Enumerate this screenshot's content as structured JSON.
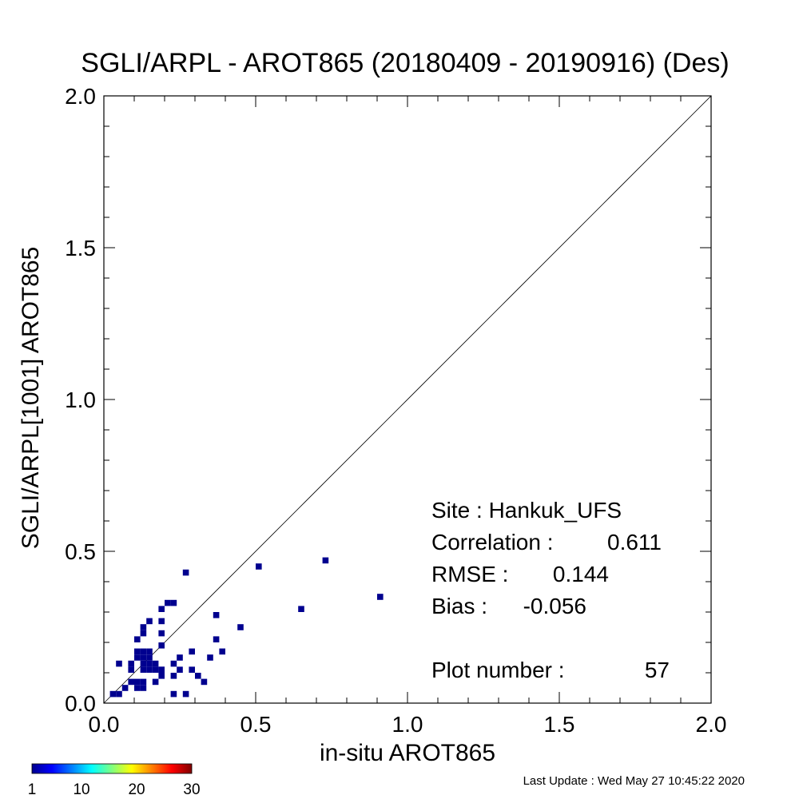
{
  "chart_data": {
    "type": "heatmap",
    "title": "SGLI/ARPL - AROT865 (20180409 - 20190916) (Des)",
    "xlabel": "in-situ AROT865",
    "ylabel": "SGLI/ARPL[1001]    AROT865",
    "xlim": [
      0.0,
      2.0
    ],
    "ylim": [
      0.0,
      2.0
    ],
    "x_ticks": [
      "0.0",
      "0.5",
      "1.0",
      "1.5",
      "2.0"
    ],
    "y_ticks": [
      "0.0",
      "0.5",
      "1.0",
      "1.5",
      "2.0"
    ],
    "x_tick_values": [
      0.0,
      0.5,
      1.0,
      1.5,
      2.0
    ],
    "y_tick_values": [
      0.0,
      0.5,
      1.0,
      1.5,
      2.0
    ],
    "reference_line": "1:1",
    "grid": false,
    "cell_size": 0.02,
    "color_scale": {
      "min": 1,
      "max": 30,
      "ticks": [
        "1",
        "10",
        "20",
        "30"
      ],
      "tick_values": [
        1,
        10,
        20,
        30
      ]
    },
    "points": [
      [
        0.03,
        0.03
      ],
      [
        0.05,
        0.03
      ],
      [
        0.05,
        0.13
      ],
      [
        0.07,
        0.05
      ],
      [
        0.09,
        0.07
      ],
      [
        0.09,
        0.11
      ],
      [
        0.11,
        0.05
      ],
      [
        0.11,
        0.07
      ],
      [
        0.11,
        0.15
      ],
      [
        0.11,
        0.21
      ],
      [
        0.13,
        0.05
      ],
      [
        0.13,
        0.07
      ],
      [
        0.13,
        0.11
      ],
      [
        0.13,
        0.13
      ],
      [
        0.13,
        0.15
      ],
      [
        0.13,
        0.17
      ],
      [
        0.13,
        0.23
      ],
      [
        0.13,
        0.25
      ],
      [
        0.15,
        0.11
      ],
      [
        0.15,
        0.13
      ],
      [
        0.15,
        0.15
      ],
      [
        0.15,
        0.17
      ],
      [
        0.15,
        0.27
      ],
      [
        0.17,
        0.07
      ],
      [
        0.17,
        0.11
      ],
      [
        0.17,
        0.13
      ],
      [
        0.19,
        0.09
      ],
      [
        0.19,
        0.11
      ],
      [
        0.19,
        0.19
      ],
      [
        0.19,
        0.23
      ],
      [
        0.19,
        0.27
      ],
      [
        0.19,
        0.31
      ],
      [
        0.21,
        0.33
      ],
      [
        0.23,
        0.03
      ],
      [
        0.23,
        0.09
      ],
      [
        0.23,
        0.13
      ],
      [
        0.23,
        0.33
      ],
      [
        0.25,
        0.11
      ],
      [
        0.25,
        0.15
      ],
      [
        0.27,
        0.03
      ],
      [
        0.27,
        0.43
      ],
      [
        0.29,
        0.11
      ],
      [
        0.29,
        0.17
      ],
      [
        0.31,
        0.09
      ],
      [
        0.33,
        0.07
      ],
      [
        0.35,
        0.15
      ],
      [
        0.37,
        0.21
      ],
      [
        0.37,
        0.29
      ],
      [
        0.39,
        0.17
      ],
      [
        0.45,
        0.25
      ],
      [
        0.51,
        0.45
      ],
      [
        0.65,
        0.31
      ],
      [
        0.73,
        0.47
      ],
      [
        0.91,
        0.35
      ],
      [
        0.09,
        0.13
      ],
      [
        0.11,
        0.17
      ],
      [
        0.19,
        0.11
      ]
    ],
    "point_color": "#00008f",
    "annotations": {
      "site": "Site : Hankuk_UFS",
      "correlation_label": "Correlation :",
      "correlation_value": "0.611",
      "rmse_label": "RMSE :",
      "rmse_value": "0.144",
      "bias_label": "Bias :",
      "bias_value": "-0.056",
      "plot_number_label": "Plot number :",
      "plot_number_value": "57"
    }
  },
  "footer": {
    "last_update": "Last Update : Wed May 27 10:45:22 2020"
  }
}
